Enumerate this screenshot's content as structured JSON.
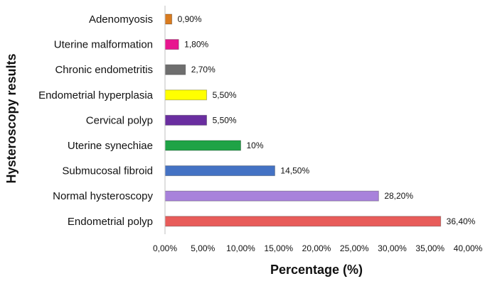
{
  "chart_data": {
    "type": "bar",
    "orientation": "horizontal",
    "categories": [
      "Adenomyosis",
      "Uterine malformation",
      "Chronic endometritis",
      "Endometrial hyperplasia",
      "Cervical polyp",
      "Uterine synechiae",
      "Submucosal fibroid",
      "Normal hysteroscopy",
      "Endometrial polyp"
    ],
    "values": [
      0.9,
      1.8,
      2.7,
      5.5,
      5.5,
      10,
      14.5,
      28.2,
      36.4
    ],
    "data_labels": [
      "0,90%",
      "1,80%",
      "2,70%",
      "5,50%",
      "5,50%",
      "10%",
      "14,50%",
      "28,20%",
      "36,40%"
    ],
    "colors": [
      "#D97B1F",
      "#E8168F",
      "#6E6E6E",
      "#FFFF00",
      "#6A2EA0",
      "#1FA346",
      "#4472C4",
      "#A882DB",
      "#E85C5A"
    ],
    "xlabel": "Percentage (%)",
    "ylabel": "Hysteroscopy results",
    "xlim": [
      0,
      40
    ],
    "xticks": [
      0,
      5,
      10,
      15,
      20,
      25,
      30,
      35,
      40
    ],
    "xtick_labels": [
      "0,00%",
      "5,00%",
      "10,00%",
      "15,00%",
      "20,00%",
      "25,00%",
      "30,00%",
      "35,00%",
      "40,00%"
    ],
    "grid": false,
    "legend": "none"
  }
}
